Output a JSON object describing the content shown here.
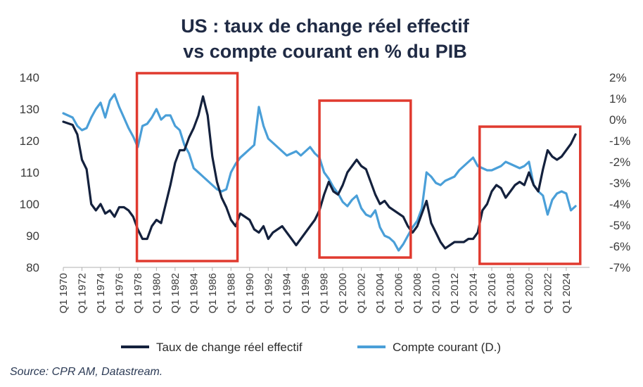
{
  "chart_data": {
    "type": "line",
    "title_lines": [
      "US : taux de change réel effectif",
      "vs compte courant en % du PIB"
    ],
    "left_axis": {
      "min": 80,
      "max": 140,
      "ticks": [
        80,
        90,
        100,
        110,
        120,
        130,
        140
      ]
    },
    "right_axis": {
      "min": -7,
      "max": 2,
      "ticks": [
        "2%",
        "1%",
        "0%",
        "-1%",
        "-2%",
        "-3%",
        "-4%",
        "-5%",
        "-6%",
        "-7%"
      ]
    },
    "x_range": [
      1970,
      2026.5
    ],
    "x_ticks": [
      "Q1 1970",
      "Q1 1972",
      "Q1 1974",
      "Q1 1976",
      "Q1 1978",
      "Q1 1980",
      "Q1 1982",
      "Q1 1984",
      "Q1 1986",
      "Q1 1988",
      "Q1 1990",
      "Q1 1992",
      "Q1 1994",
      "Q1 1996",
      "Q1 1998",
      "Q1 2000",
      "Q1 2002",
      "Q1 2004",
      "Q1 2006",
      "Q1 2008",
      "Q1 2010",
      "Q1 2012",
      "Q1 2014",
      "Q1 2016",
      "Q1 2018",
      "Q1 2020",
      "Q1 2022",
      "Q1 2024"
    ],
    "highlight_boxes": [
      {
        "x_start": 1977.9,
        "x_end": 1988.7
      },
      {
        "x_start": 1997.5,
        "x_end": 2007.3
      },
      {
        "x_start": 2014.7,
        "x_end": 2025.5
      }
    ],
    "series": [
      {
        "name": "Taux de change réel effectif",
        "axis": "left",
        "color": "#14213d",
        "points": [
          [
            1970,
            126
          ],
          [
            1970.5,
            125.5
          ],
          [
            1971,
            125
          ],
          [
            1971.5,
            122
          ],
          [
            1972,
            114
          ],
          [
            1972.5,
            111
          ],
          [
            1973,
            100
          ],
          [
            1973.5,
            98
          ],
          [
            1974,
            100
          ],
          [
            1974.5,
            97
          ],
          [
            1975,
            98
          ],
          [
            1975.5,
            96
          ],
          [
            1976,
            99
          ],
          [
            1976.5,
            99
          ],
          [
            1977,
            98
          ],
          [
            1977.5,
            96
          ],
          [
            1978,
            92
          ],
          [
            1978.5,
            89
          ],
          [
            1979,
            89
          ],
          [
            1979.5,
            93
          ],
          [
            1980,
            95
          ],
          [
            1980.5,
            94
          ],
          [
            1981,
            100
          ],
          [
            1981.5,
            106
          ],
          [
            1982,
            113
          ],
          [
            1982.5,
            117
          ],
          [
            1983,
            117
          ],
          [
            1983.5,
            121
          ],
          [
            1984,
            124
          ],
          [
            1984.5,
            128
          ],
          [
            1985,
            134
          ],
          [
            1985.5,
            128
          ],
          [
            1986,
            115
          ],
          [
            1986.5,
            107
          ],
          [
            1987,
            102
          ],
          [
            1987.5,
            99
          ],
          [
            1988,
            95
          ],
          [
            1988.5,
            93
          ],
          [
            1989,
            97
          ],
          [
            1989.5,
            96
          ],
          [
            1990,
            95
          ],
          [
            1990.5,
            92
          ],
          [
            1991,
            91
          ],
          [
            1991.5,
            93
          ],
          [
            1992,
            89
          ],
          [
            1992.5,
            91
          ],
          [
            1993,
            92
          ],
          [
            1993.5,
            93
          ],
          [
            1994,
            91
          ],
          [
            1994.5,
            89
          ],
          [
            1995,
            87
          ],
          [
            1995.5,
            89
          ],
          [
            1996,
            91
          ],
          [
            1996.5,
            93
          ],
          [
            1997,
            95
          ],
          [
            1997.5,
            98
          ],
          [
            1998,
            103
          ],
          [
            1998.5,
            107
          ],
          [
            1999,
            104
          ],
          [
            1999.5,
            103
          ],
          [
            2000,
            106
          ],
          [
            2000.5,
            110
          ],
          [
            2001,
            112
          ],
          [
            2001.5,
            114
          ],
          [
            2002,
            112
          ],
          [
            2002.5,
            111
          ],
          [
            2003,
            107
          ],
          [
            2003.5,
            103
          ],
          [
            2004,
            100
          ],
          [
            2004.5,
            101
          ],
          [
            2005,
            99
          ],
          [
            2005.5,
            98
          ],
          [
            2006,
            97
          ],
          [
            2006.5,
            96
          ],
          [
            2007,
            93
          ],
          [
            2007.5,
            91
          ],
          [
            2008,
            93
          ],
          [
            2008.5,
            97
          ],
          [
            2009,
            101
          ],
          [
            2009.5,
            94
          ],
          [
            2010,
            91
          ],
          [
            2010.5,
            88
          ],
          [
            2011,
            86
          ],
          [
            2011.5,
            87
          ],
          [
            2012,
            88
          ],
          [
            2012.5,
            88
          ],
          [
            2013,
            88
          ],
          [
            2013.5,
            89
          ],
          [
            2014,
            89
          ],
          [
            2014.5,
            91
          ],
          [
            2015,
            98
          ],
          [
            2015.5,
            100
          ],
          [
            2016,
            104
          ],
          [
            2016.5,
            106
          ],
          [
            2017,
            105
          ],
          [
            2017.5,
            102
          ],
          [
            2018,
            104
          ],
          [
            2018.5,
            106
          ],
          [
            2019,
            107
          ],
          [
            2019.5,
            106
          ],
          [
            2020,
            110
          ],
          [
            2020.5,
            106
          ],
          [
            2021,
            104
          ],
          [
            2021.5,
            111
          ],
          [
            2022,
            117
          ],
          [
            2022.5,
            115
          ],
          [
            2023,
            114
          ],
          [
            2023.5,
            115
          ],
          [
            2024,
            117
          ],
          [
            2024.5,
            119
          ],
          [
            2025,
            122
          ]
        ]
      },
      {
        "name": "Compte courant (D.)",
        "axis": "right",
        "color": "#4a9fd8",
        "points": [
          [
            1970,
            0.3
          ],
          [
            1970.5,
            0.2
          ],
          [
            1971,
            0.1
          ],
          [
            1971.5,
            -0.3
          ],
          [
            1972,
            -0.5
          ],
          [
            1972.5,
            -0.4
          ],
          [
            1973,
            0.1
          ],
          [
            1973.5,
            0.5
          ],
          [
            1974,
            0.8
          ],
          [
            1974.5,
            0.1
          ],
          [
            1975,
            0.9
          ],
          [
            1975.5,
            1.2
          ],
          [
            1976,
            0.6
          ],
          [
            1976.5,
            0.1
          ],
          [
            1977,
            -0.4
          ],
          [
            1977.5,
            -0.8
          ],
          [
            1978,
            -1.3
          ],
          [
            1978.5,
            -0.3
          ],
          [
            1979,
            -0.2
          ],
          [
            1979.5,
            0.1
          ],
          [
            1980,
            0.5
          ],
          [
            1980.5,
            0.0
          ],
          [
            1981,
            0.2
          ],
          [
            1981.5,
            0.2
          ],
          [
            1982,
            -0.3
          ],
          [
            1982.5,
            -0.5
          ],
          [
            1983,
            -1.2
          ],
          [
            1983.5,
            -1.6
          ],
          [
            1984,
            -2.3
          ],
          [
            1984.5,
            -2.5
          ],
          [
            1985,
            -2.7
          ],
          [
            1985.5,
            -2.9
          ],
          [
            1986,
            -3.1
          ],
          [
            1986.5,
            -3.3
          ],
          [
            1987,
            -3.4
          ],
          [
            1987.5,
            -3.3
          ],
          [
            1988,
            -2.5
          ],
          [
            1988.5,
            -2.1
          ],
          [
            1989,
            -1.8
          ],
          [
            1989.5,
            -1.6
          ],
          [
            1990,
            -1.4
          ],
          [
            1990.5,
            -1.2
          ],
          [
            1991,
            0.6
          ],
          [
            1991.5,
            -0.3
          ],
          [
            1992,
            -0.9
          ],
          [
            1992.5,
            -1.1
          ],
          [
            1993,
            -1.3
          ],
          [
            1993.5,
            -1.5
          ],
          [
            1994,
            -1.7
          ],
          [
            1994.5,
            -1.6
          ],
          [
            1995,
            -1.5
          ],
          [
            1995.5,
            -1.7
          ],
          [
            1996,
            -1.5
          ],
          [
            1996.5,
            -1.3
          ],
          [
            1997,
            -1.6
          ],
          [
            1997.5,
            -1.8
          ],
          [
            1998,
            -2.5
          ],
          [
            1998.5,
            -2.8
          ],
          [
            1999,
            -3.2
          ],
          [
            1999.5,
            -3.5
          ],
          [
            2000,
            -3.9
          ],
          [
            2000.5,
            -4.1
          ],
          [
            2001,
            -3.8
          ],
          [
            2001.5,
            -3.6
          ],
          [
            2002,
            -4.2
          ],
          [
            2002.5,
            -4.5
          ],
          [
            2003,
            -4.6
          ],
          [
            2003.5,
            -4.3
          ],
          [
            2004,
            -5.1
          ],
          [
            2004.5,
            -5.5
          ],
          [
            2005,
            -5.6
          ],
          [
            2005.5,
            -5.8
          ],
          [
            2006,
            -6.2
          ],
          [
            2006.5,
            -5.9
          ],
          [
            2007,
            -5.5
          ],
          [
            2007.5,
            -5.1
          ],
          [
            2008,
            -4.8
          ],
          [
            2008.5,
            -4.2
          ],
          [
            2009,
            -2.5
          ],
          [
            2009.5,
            -2.7
          ],
          [
            2010,
            -3.0
          ],
          [
            2010.5,
            -3.1
          ],
          [
            2011,
            -2.9
          ],
          [
            2011.5,
            -2.8
          ],
          [
            2012,
            -2.7
          ],
          [
            2012.5,
            -2.4
          ],
          [
            2013,
            -2.2
          ],
          [
            2013.5,
            -2.0
          ],
          [
            2014,
            -1.8
          ],
          [
            2014.5,
            -2.2
          ],
          [
            2015,
            -2.3
          ],
          [
            2015.5,
            -2.4
          ],
          [
            2016,
            -2.4
          ],
          [
            2016.5,
            -2.3
          ],
          [
            2017,
            -2.2
          ],
          [
            2017.5,
            -2.0
          ],
          [
            2018,
            -2.1
          ],
          [
            2018.5,
            -2.2
          ],
          [
            2019,
            -2.3
          ],
          [
            2019.5,
            -2.2
          ],
          [
            2020,
            -2.0
          ],
          [
            2020.5,
            -3.1
          ],
          [
            2021,
            -3.4
          ],
          [
            2021.5,
            -3.6
          ],
          [
            2022,
            -4.5
          ],
          [
            2022.5,
            -3.8
          ],
          [
            2023,
            -3.5
          ],
          [
            2023.5,
            -3.4
          ],
          [
            2024,
            -3.5
          ],
          [
            2024.5,
            -4.3
          ],
          [
            2025,
            -4.1
          ]
        ]
      }
    ],
    "legend": {
      "position": "bottom-center",
      "items": [
        {
          "label": "Taux de change réel effectif",
          "color": "#14213d"
        },
        {
          "label": "Compte courant (D.)",
          "color": "#4a9fd8"
        }
      ]
    },
    "source": "Source: CPR AM, Datastream."
  }
}
